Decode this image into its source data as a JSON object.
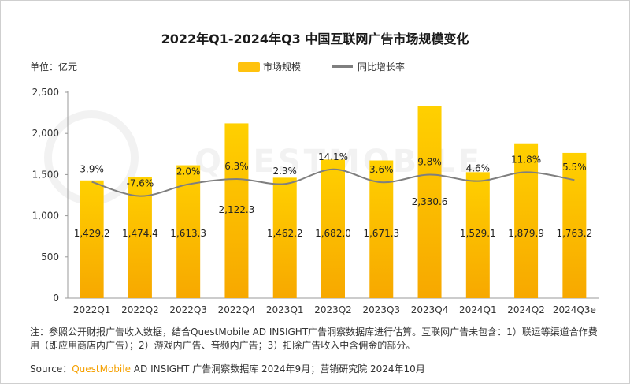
{
  "title": "2022年Q1-2024年Q3 中国互联网广告市场规模变化",
  "unit_label": "单位：亿元",
  "legend": {
    "bar": "市场规模",
    "line": "同比增长率"
  },
  "watermark": "QUESTMOBILE",
  "colors": {
    "bar_top": "#FFD000",
    "bar_bottom": "#F7A800",
    "line": "#7f7f7f"
  },
  "chart_data": {
    "type": "bar",
    "categories": [
      "2022Q1",
      "2022Q2",
      "2022Q3",
      "2022Q4",
      "2023Q1",
      "2023Q2",
      "2023Q3",
      "2023Q4",
      "2024Q1",
      "2024Q2",
      "2024Q3e"
    ],
    "value_labels": [
      "1,429.2",
      "1,474.4",
      "1,613.3",
      "2,122.3",
      "1,462.2",
      "1,682.0",
      "1,671.3",
      "2,330.6",
      "1,529.1",
      "1,879.9",
      "1,763.2"
    ],
    "series": [
      {
        "name": "市场规模",
        "type": "bar",
        "values": [
          1429.2,
          1474.4,
          1613.3,
          2122.3,
          1462.2,
          1682.0,
          1671.3,
          2330.6,
          1529.1,
          1879.9,
          1763.2
        ]
      },
      {
        "name": "同比增长率",
        "type": "line",
        "values": [
          3.9,
          -7.6,
          2.0,
          6.3,
          2.3,
          14.1,
          3.6,
          9.8,
          4.6,
          11.8,
          5.5
        ],
        "labels": [
          "3.9%",
          "-7.6%",
          "2.0%",
          "6.3%",
          "2.3%",
          "14.1%",
          "3.6%",
          "9.8%",
          "4.6%",
          "11.8%",
          "5.5%"
        ]
      }
    ],
    "ylim": [
      0,
      2500
    ],
    "yticks": [
      0,
      500,
      1000,
      1500,
      2000,
      2500
    ],
    "ytick_labels": [
      "0",
      "500",
      "1,000",
      "1,500",
      "2,000",
      "2,500"
    ],
    "grid": false,
    "legend_position": "top"
  },
  "footnote": "注：参照公开财报广告收入数据，结合QuestMobile AD INSIGHT广告洞察数据库进行估算。互联网广告未包含：1）联运等渠道合作费用（即应用商店内广告）；2）游戏内广告、音频内广告；3）扣除广告收入中含佣金的部分。",
  "source": {
    "prefix": "Source：",
    "brand": "QuestMobile",
    "text": " AD INSIGHT 广告洞察数据库 2024年9月；营销研究院 2024年10月"
  }
}
